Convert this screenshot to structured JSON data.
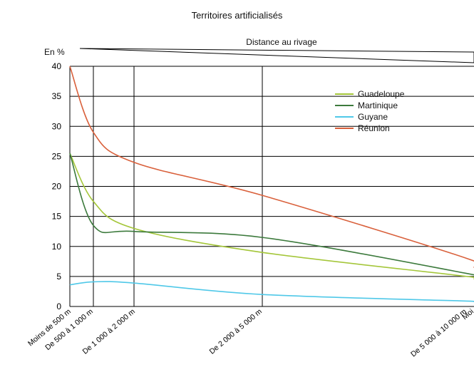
{
  "chart_data": {
    "type": "line",
    "title": "Territoires artificialisés",
    "subtitle": "Distance au rivage",
    "ylabel": "En %",
    "ylim": [
      0,
      40
    ],
    "yticks": [
      "0",
      "5",
      "10",
      "15",
      "20",
      "25",
      "30",
      "35",
      "40"
    ],
    "categories": [
      "Moins de 500 m",
      "De 500 à 1 000 m",
      "De 1 000 à 2 000 m",
      "De 2 000 à 5 000 m",
      "De 5 000 à 10 000 m",
      "Moi"
    ],
    "series": [
      {
        "name": "Guadeloupe",
        "color": "#a4c639",
        "values": [
          25.5,
          17.5,
          13,
          9,
          5,
          4.6
        ]
      },
      {
        "name": "Martinique",
        "color": "#3c7a3c",
        "values": [
          25.5,
          13.5,
          12.5,
          11.5,
          5.5,
          5
        ]
      },
      {
        "name": "Guyane",
        "color": "#4fc8e8",
        "values": [
          3.6,
          4.1,
          3.9,
          2,
          0.9,
          0.8
        ]
      },
      {
        "name": "Réunion",
        "color": "#d9603b",
        "values": [
          40,
          29,
          24,
          18.5,
          8,
          6.5
        ]
      }
    ],
    "grid": true,
    "legend_position": "top-right"
  }
}
